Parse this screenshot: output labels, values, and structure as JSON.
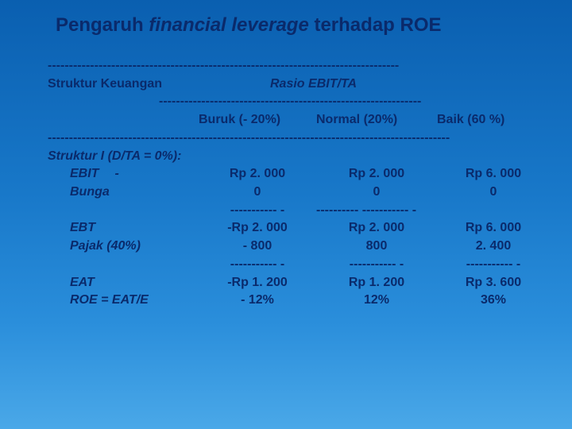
{
  "title_parts": {
    "p1": "Pengaruh ",
    "p2_ital": "financial leverage",
    "p3": " terhadap ROE"
  },
  "sep1": "-----------------------------------------------------------------------------------",
  "header": {
    "left": "Struktur Keuangan",
    "right": "Rasio EBIT/TA"
  },
  "sep2": "--------------------------------------------------------------",
  "col_headers": {
    "c1": "Buruk (- 20%)",
    "c2": "Normal (20%)",
    "c3": "Baik (60 %)"
  },
  "sep3": "-----------------------------------------------------------------------------------------------",
  "struct_label": "Struktur I (D/TA = 0%):",
  "rows": [
    {
      "label": "EBIT",
      "dash": "-",
      "v1": "Rp 2. 000",
      "v2": "Rp 2. 000",
      "v3": "Rp 6. 000"
    },
    {
      "label": "Bunga",
      "dash": "",
      "v1": "0",
      "v2": "0",
      "v3": "0"
    }
  ],
  "subsep": {
    "s1": "----------- -",
    "s2": "---------- ----------- -",
    "s3": ""
  },
  "rows2": [
    {
      "label": "EBT",
      "dash": "",
      "v1": "-Rp 2. 000",
      "v2": "Rp 2. 000",
      "v3": "Rp 6. 000"
    },
    {
      "label": "Pajak (40%)",
      "dash": "",
      "v1": "- 800",
      "v2": "800",
      "v3": "2. 400"
    }
  ],
  "subsep2": {
    "s1": "----------- -",
    "s2": "----------- -",
    "s3": "----------- -"
  },
  "rows3": [
    {
      "label": "EAT",
      "dash": "",
      "v1": "-Rp 1. 200",
      "v2": "Rp 1. 200",
      "v3": "Rp 3. 600"
    },
    {
      "label": "ROE = EAT/E",
      "dash": "",
      "v1": "- 12%",
      "v2": "12%",
      "v3": "36%"
    }
  ]
}
